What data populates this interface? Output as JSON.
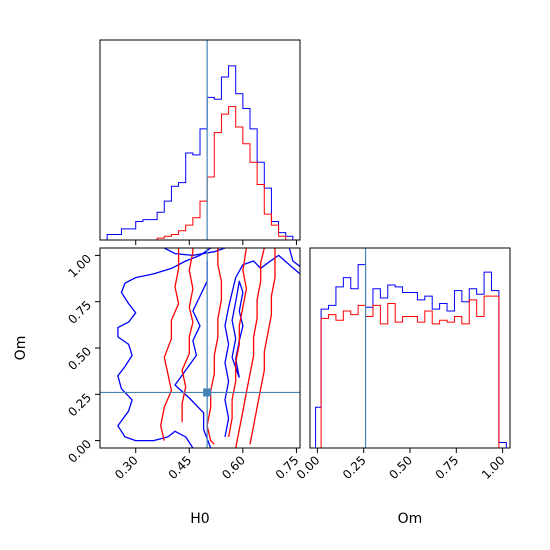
{
  "chart_data": {
    "type": "corner",
    "params": [
      "H0",
      "Om"
    ],
    "truths": {
      "H0": 0.5,
      "Om": 0.26
    },
    "colors": {
      "blue": "#0000ff",
      "red": "#ff0000",
      "truth": "#4682b4"
    },
    "panels": [
      {
        "id": "hist-H0",
        "type": "histogram",
        "param": "H0",
        "xlim": [
          0.2,
          0.76
        ],
        "ylim": [
          0,
          1.08
        ],
        "bin_edges": [
          0.2,
          0.22,
          0.24,
          0.26,
          0.28,
          0.3,
          0.32,
          0.34,
          0.36,
          0.38,
          0.4,
          0.42,
          0.44,
          0.46,
          0.48,
          0.5,
          0.52,
          0.54,
          0.56,
          0.58,
          0.6,
          0.62,
          0.64,
          0.66,
          0.68,
          0.7,
          0.72,
          0.74
        ],
        "series": [
          {
            "color": "blue",
            "values": [
              0.0,
              0.03,
              0.03,
              0.06,
              0.06,
              0.1,
              0.11,
              0.11,
              0.15,
              0.21,
              0.29,
              0.31,
              0.47,
              0.46,
              0.6,
              0.77,
              0.76,
              0.88,
              0.94,
              0.79,
              0.71,
              0.6,
              0.42,
              0.28,
              0.1,
              0.04,
              0.02
            ]
          },
          {
            "color": "red",
            "values": [
              0.0,
              0.0,
              0.0,
              0.0,
              0.0,
              0.0,
              0.0,
              0.0,
              0.01,
              0.02,
              0.03,
              0.05,
              0.08,
              0.12,
              0.21,
              0.34,
              0.58,
              0.68,
              0.72,
              0.61,
              0.52,
              0.42,
              0.3,
              0.14,
              0.08,
              0.02,
              0.0
            ]
          }
        ]
      },
      {
        "id": "contour-H0-Om",
        "type": "contour",
        "x": "H0",
        "y": "Om",
        "xlim": [
          0.2,
          0.76
        ],
        "ylim": [
          -0.04,
          1.04
        ],
        "xticks": [
          0.3,
          0.45,
          0.6,
          0.75
        ],
        "yticks": [
          0.0,
          0.25,
          0.5,
          0.75,
          1.0
        ],
        "xtick_labels": [
          "0.30",
          "0.45",
          "0.60",
          "0.75"
        ],
        "ytick_labels": [
          "0.00",
          "0.25",
          "0.50",
          "0.75",
          "1.00"
        ],
        "xlabel": "H0",
        "ylabel": "Om",
        "series": [
          {
            "color": "blue",
            "paths": [
              [
                [
                  0.51,
                  1.04
                ],
                [
                  0.48,
                  1.0
                ],
                [
                  0.44,
                  0.97
                ],
                [
                  0.4,
                  0.93
                ],
                [
                  0.35,
                  0.9
                ],
                [
                  0.3,
                  0.88
                ],
                [
                  0.27,
                  0.85
                ],
                [
                  0.26,
                  0.8
                ],
                [
                  0.28,
                  0.74
                ],
                [
                  0.3,
                  0.69
                ],
                [
                  0.28,
                  0.64
                ],
                [
                  0.25,
                  0.61
                ],
                [
                  0.25,
                  0.56
                ],
                [
                  0.28,
                  0.52
                ],
                [
                  0.29,
                  0.46
                ],
                [
                  0.27,
                  0.4
                ],
                [
                  0.25,
                  0.35
                ],
                [
                  0.26,
                  0.28
                ],
                [
                  0.29,
                  0.22
                ],
                [
                  0.28,
                  0.16
                ],
                [
                  0.25,
                  0.08
                ],
                [
                  0.27,
                  0.02
                ],
                [
                  0.3,
                  0.0
                ],
                [
                  0.35,
                  0.0
                ],
                [
                  0.39,
                  0.02
                ],
                [
                  0.41,
                  0.05
                ],
                [
                  0.44,
                  0.02
                ],
                [
                  0.46,
                  -0.04
                ]
              ],
              [
                [
                  0.38,
                  1.04
                ],
                [
                  0.41,
                  1.01
                ],
                [
                  0.46,
                  1.0
                ],
                [
                  0.52,
                  1.02
                ],
                [
                  0.55,
                  1.04
                ]
              ],
              [
                [
                  0.5,
                  0.97
                ],
                [
                  0.5,
                  0.86
                ],
                [
                  0.48,
                  0.78
                ],
                [
                  0.46,
                  0.7
                ],
                [
                  0.48,
                  0.62
                ],
                [
                  0.46,
                  0.54
                ],
                [
                  0.47,
                  0.46
                ],
                [
                  0.44,
                  0.38
                ],
                [
                  0.41,
                  0.3
                ],
                [
                  0.45,
                  0.23
                ],
                [
                  0.49,
                  0.15
                ],
                [
                  0.49,
                  0.06
                ],
                [
                  0.51,
                  -0.04
                ]
              ],
              [
                [
                  0.55,
                  0.02
                ],
                [
                  0.56,
                  0.12
                ],
                [
                  0.55,
                  0.22
                ],
                [
                  0.56,
                  0.32
                ],
                [
                  0.55,
                  0.42
                ],
                [
                  0.56,
                  0.52
                ],
                [
                  0.55,
                  0.62
                ],
                [
                  0.56,
                  0.72
                ],
                [
                  0.57,
                  0.8
                ],
                [
                  0.58,
                  0.88
                ],
                [
                  0.6,
                  0.95
                ],
                [
                  0.63,
                  0.97
                ],
                [
                  0.65,
                  0.93
                ],
                [
                  0.67,
                  0.96
                ],
                [
                  0.7,
                  1.0
                ],
                [
                  0.73,
                  0.95
                ],
                [
                  0.76,
                  0.9
                ]
              ],
              [
                [
                  0.59,
                  0.34
                ],
                [
                  0.58,
                  0.44
                ],
                [
                  0.59,
                  0.54
                ],
                [
                  0.6,
                  0.62
                ],
                [
                  0.59,
                  0.7
                ],
                [
                  0.6,
                  0.8
                ],
                [
                  0.59,
                  0.86
                ],
                [
                  0.58,
                  0.75
                ],
                [
                  0.57,
                  0.65
                ],
                [
                  0.58,
                  0.55
                ],
                [
                  0.57,
                  0.45
                ],
                [
                  0.59,
                  0.34
                ]
              ],
              [
                [
                  0.73,
                  1.04
                ],
                [
                  0.74,
                  0.97
                ],
                [
                  0.76,
                  0.94
                ]
              ]
            ]
          },
          {
            "color": "red",
            "paths": [
              [
                [
                  0.42,
                  1.04
                ],
                [
                  0.42,
                  0.93
                ],
                [
                  0.41,
                  0.83
                ],
                [
                  0.42,
                  0.74
                ],
                [
                  0.4,
                  0.65
                ],
                [
                  0.4,
                  0.55
                ],
                [
                  0.38,
                  0.45
                ],
                [
                  0.39,
                  0.36
                ],
                [
                  0.4,
                  0.27
                ],
                [
                  0.38,
                  0.18
                ],
                [
                  0.37,
                  0.08
                ],
                [
                  0.38,
                  0.0
                ]
              ],
              [
                [
                  0.43,
                  0.1
                ],
                [
                  0.43,
                  0.2
                ],
                [
                  0.44,
                  0.29
                ],
                [
                  0.43,
                  0.38
                ],
                [
                  0.45,
                  0.47
                ],
                [
                  0.45,
                  0.56
                ],
                [
                  0.46,
                  0.64
                ],
                [
                  0.45,
                  0.72
                ],
                [
                  0.46,
                  0.82
                ],
                [
                  0.45,
                  0.92
                ],
                [
                  0.46,
                  1.02
                ],
                [
                  0.46,
                  1.04
                ]
              ],
              [
                [
                  0.53,
                  1.04
                ],
                [
                  0.53,
                  0.95
                ],
                [
                  0.54,
                  0.86
                ],
                [
                  0.54,
                  0.76
                ],
                [
                  0.53,
                  0.66
                ],
                [
                  0.53,
                  0.56
                ],
                [
                  0.52,
                  0.46
                ],
                [
                  0.52,
                  0.36
                ],
                [
                  0.51,
                  0.27
                ],
                [
                  0.51,
                  0.18
                ],
                [
                  0.5,
                  0.08
                ],
                [
                  0.51,
                  0.0
                ],
                [
                  0.52,
                  -0.02
                ]
              ],
              [
                [
                  0.56,
                  0.02
                ],
                [
                  0.57,
                  0.12
                ],
                [
                  0.57,
                  0.22
                ],
                [
                  0.58,
                  0.32
                ],
                [
                  0.58,
                  0.42
                ],
                [
                  0.59,
                  0.52
                ],
                [
                  0.59,
                  0.62
                ],
                [
                  0.6,
                  0.72
                ],
                [
                  0.61,
                  0.82
                ],
                [
                  0.6,
                  0.92
                ],
                [
                  0.61,
                  1.04
                ]
              ],
              [
                [
                  0.58,
                  -0.04
                ],
                [
                  0.59,
                  0.06
                ],
                [
                  0.6,
                  0.16
                ],
                [
                  0.61,
                  0.26
                ],
                [
                  0.62,
                  0.36
                ],
                [
                  0.63,
                  0.46
                ],
                [
                  0.63,
                  0.56
                ],
                [
                  0.64,
                  0.66
                ],
                [
                  0.64,
                  0.76
                ],
                [
                  0.65,
                  0.86
                ],
                [
                  0.65,
                  0.96
                ],
                [
                  0.66,
                  1.04
                ]
              ],
              [
                [
                  0.62,
                  -0.02
                ],
                [
                  0.63,
                  0.08
                ],
                [
                  0.64,
                  0.18
                ],
                [
                  0.65,
                  0.28
                ],
                [
                  0.66,
                  0.38
                ],
                [
                  0.66,
                  0.48
                ],
                [
                  0.67,
                  0.58
                ],
                [
                  0.68,
                  0.68
                ],
                [
                  0.68,
                  0.78
                ],
                [
                  0.69,
                  0.88
                ],
                [
                  0.69,
                  0.98
                ],
                [
                  0.69,
                  1.04
                ]
              ]
            ]
          }
        ]
      },
      {
        "id": "hist-Om",
        "type": "histogram",
        "param": "Om",
        "xlim": [
          -0.04,
          1.04
        ],
        "ylim": [
          0,
          1.08
        ],
        "xticks": [
          0.0,
          0.25,
          0.5,
          0.75,
          1.0
        ],
        "xtick_labels": [
          "0.00",
          "0.25",
          "0.50",
          "0.75",
          "1.00"
        ],
        "xlabel": "Om",
        "bin_edges": [
          -0.01,
          0.02,
          0.06,
          0.1,
          0.14,
          0.18,
          0.22,
          0.26,
          0.3,
          0.34,
          0.38,
          0.42,
          0.46,
          0.5,
          0.54,
          0.58,
          0.62,
          0.66,
          0.7,
          0.74,
          0.78,
          0.82,
          0.86,
          0.9,
          0.94,
          0.98,
          1.02
        ],
        "series": [
          {
            "color": "blue",
            "values": [
              0.22,
              0.75,
              0.77,
              0.87,
              0.92,
              0.86,
              0.99,
              0.76,
              0.86,
              0.81,
              0.88,
              0.87,
              0.84,
              0.84,
              0.8,
              0.82,
              0.75,
              0.78,
              0.74,
              0.85,
              0.79,
              0.86,
              0.83,
              0.95,
              0.85,
              0.03
            ]
          },
          {
            "color": "red",
            "values": [
              0.0,
              0.7,
              0.72,
              0.69,
              0.74,
              0.72,
              0.77,
              0.71,
              0.77,
              0.67,
              0.78,
              0.68,
              0.71,
              0.71,
              0.68,
              0.74,
              0.67,
              0.69,
              0.68,
              0.71,
              0.67,
              0.8,
              0.71,
              0.82,
              0.82,
              0.0
            ]
          }
        ]
      }
    ]
  }
}
